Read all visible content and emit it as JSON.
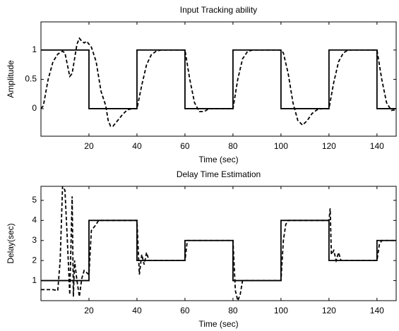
{
  "chart_data": [
    {
      "type": "line",
      "title": "Input Tracking ability",
      "x_label": "Time (sec)",
      "y_label": "Amplitude",
      "xlim": [
        0,
        148
      ],
      "ylim": [
        -0.47,
        1.48
      ],
      "xticks": [
        20,
        40,
        60,
        80,
        100,
        120,
        140
      ],
      "yticks": [
        0,
        0.5,
        1
      ],
      "series": [
        {
          "color": "#000000",
          "line_style": "solid",
          "x": [
            0,
            20,
            20,
            40,
            40,
            60,
            60,
            80,
            80,
            100,
            100,
            120,
            120,
            140,
            140,
            148
          ],
          "values": [
            1,
            1,
            0,
            0,
            1,
            1,
            0,
            0,
            1,
            1,
            0,
            0,
            1,
            1,
            0,
            0
          ]
        },
        {
          "color": "#000000",
          "line_style": "dashed",
          "x": [
            0,
            1,
            3,
            5,
            7,
            9,
            10,
            11,
            12,
            13,
            14,
            15,
            16,
            17,
            18,
            19,
            20,
            21,
            23,
            25,
            27,
            28,
            29,
            30,
            32,
            34,
            36,
            38,
            40,
            42,
            44,
            46,
            48,
            50,
            60,
            62,
            64,
            66,
            68,
            70,
            80,
            82,
            84,
            86,
            88,
            100,
            101,
            103,
            105,
            107,
            109,
            111,
            113,
            115,
            117,
            120,
            122,
            124,
            126,
            128,
            140,
            142,
            144,
            146,
            148
          ],
          "values": [
            0,
            0.05,
            0.5,
            0.8,
            0.93,
            0.98,
            0.95,
            0.75,
            0.55,
            0.6,
            0.85,
            1.1,
            1.2,
            1.15,
            1.12,
            1.15,
            1.1,
            1.05,
            0.8,
            0.3,
            0.05,
            -0.2,
            -0.3,
            -0.3,
            -0.2,
            -0.1,
            -0.02,
            0,
            0,
            0.4,
            0.75,
            0.92,
            0.98,
            1,
            1,
            0.5,
            0.1,
            -0.05,
            -0.05,
            0,
            0,
            0.5,
            0.85,
            0.97,
            1,
            1,
            0.95,
            0.6,
            0.1,
            -0.2,
            -0.28,
            -0.2,
            -0.08,
            -0.02,
            0,
            0,
            0.45,
            0.8,
            0.95,
            1,
            1,
            0.5,
            0.1,
            -0.03,
            -0.02
          ]
        }
      ]
    },
    {
      "type": "line",
      "title": "Delay Time Estimation",
      "x_label": "Time (sec)",
      "y_label": "Delay(sec)",
      "xlim": [
        0,
        148
      ],
      "ylim": [
        0,
        5.7
      ],
      "xticks": [
        20,
        40,
        60,
        80,
        100,
        120,
        140
      ],
      "yticks": [
        1,
        2,
        3,
        4,
        5
      ],
      "series": [
        {
          "color": "#000000",
          "line_style": "solid",
          "x": [
            0,
            20,
            20,
            40,
            40,
            60,
            60,
            80,
            80,
            100,
            100,
            120,
            120,
            140,
            140,
            148
          ],
          "values": [
            1,
            1,
            4,
            4,
            2,
            2,
            3,
            3,
            1,
            1,
            4,
            4,
            2,
            2,
            3,
            3
          ]
        },
        {
          "color": "#000000",
          "line_style": "dashed",
          "x": [
            0,
            5,
            7,
            8,
            9,
            10,
            11,
            12,
            13,
            13.5,
            14,
            15,
            16,
            17,
            18,
            20,
            21,
            23,
            24,
            40,
            41,
            42,
            43,
            44,
            45,
            60,
            61,
            80,
            81,
            82,
            83,
            84,
            100,
            101,
            102,
            103,
            120,
            120.5,
            121,
            122,
            123,
            124,
            125,
            140,
            141,
            142,
            148
          ],
          "values": [
            0.55,
            0.55,
            0.5,
            2,
            5.7,
            5.5,
            3,
            0.3,
            5.2,
            0.2,
            2,
            1,
            0.2,
            1.1,
            1.5,
            1.3,
            3.5,
            3.8,
            4,
            4,
            1.3,
            2.3,
            1.8,
            2.4,
            2,
            2,
            3,
            3,
            0.5,
            0,
            0.3,
            1,
            1,
            3,
            3.8,
            4,
            4,
            4.6,
            2.3,
            2.5,
            2,
            2.4,
            2,
            2,
            2.8,
            3,
            3
          ]
        }
      ]
    }
  ]
}
